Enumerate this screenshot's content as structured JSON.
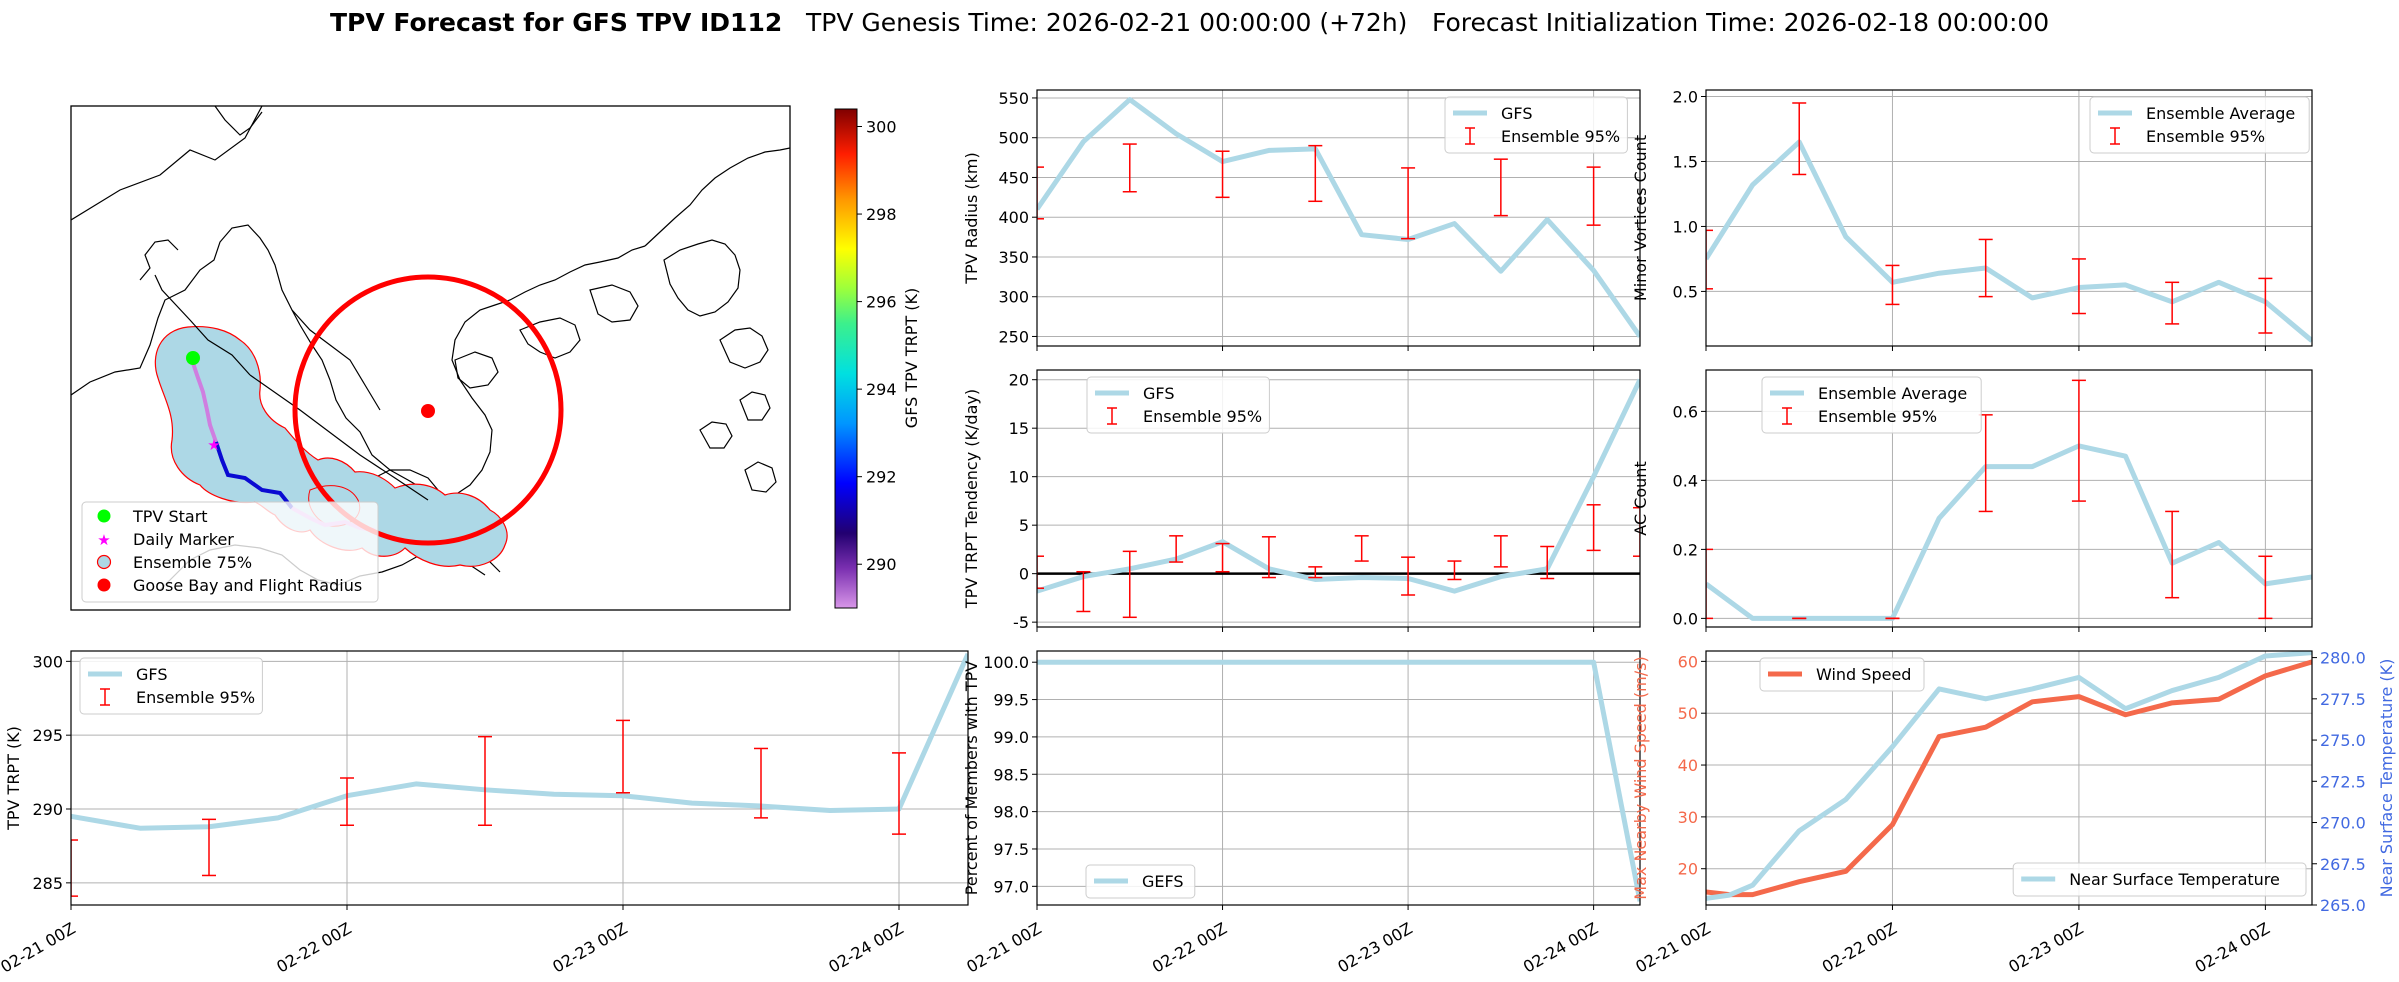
{
  "figure": {
    "title_bold": "TPV Forecast for GFS TPV ID112",
    "title_genesis": "TPV Genesis Time: 2026-02-21 00:00:00 (+72h)",
    "title_init": "Forecast Initialization Time: 2026-02-18 00:00:00"
  },
  "map_panel": {
    "legend": [
      "TPV Start",
      "Daily Marker",
      "Ensemble 75%",
      "Goose Bay and Flight Radius"
    ],
    "colorbar_label": "GFS TPV TRPT (K)",
    "colorbar_ticks": [
      "290",
      "292",
      "294",
      "296",
      "298",
      "300"
    ],
    "colorbar_range": [
      289.0,
      300.4
    ],
    "colors": {
      "start": "#00ff00",
      "daily": "#ff00ff",
      "ensemble_fill": "#add8e6",
      "ensemble_edge": "#ff0000",
      "goose_bay": "#ff0000"
    }
  },
  "chart_data": [
    {
      "id": "radius",
      "type": "line",
      "ylabel": "TPV Radius (km)",
      "ylim": [
        238,
        560
      ],
      "yticks": [
        250,
        300,
        350,
        400,
        450,
        500,
        550
      ],
      "x": [
        0,
        6,
        12,
        18,
        24,
        30,
        36,
        42,
        48,
        54,
        60,
        66,
        72,
        78
      ],
      "series": [
        {
          "name": "GFS",
          "values": [
            410,
            495,
            548,
            505,
            470,
            484,
            486,
            378,
            372,
            392,
            332,
            397,
            333,
            250
          ]
        }
      ],
      "errorbars": {
        "name": "Ensemble 95%",
        "x": [
          0,
          12,
          24,
          36,
          48,
          60,
          72
        ],
        "low": [
          398,
          432,
          425,
          420,
          373,
          402,
          390
        ],
        "high": [
          463,
          492,
          483,
          490,
          462,
          473,
          463
        ]
      },
      "legend": "upper right",
      "grid": true
    },
    {
      "id": "minor",
      "type": "line",
      "ylabel": "Minor Vortices Count",
      "ylim": [
        0.08,
        2.05
      ],
      "yticks": [
        0.5,
        1.0,
        1.5,
        2.0
      ],
      "x": [
        0,
        6,
        12,
        18,
        24,
        30,
        36,
        42,
        48,
        54,
        60,
        66,
        72,
        78
      ],
      "series": [
        {
          "name": "Ensemble Average",
          "values": [
            0.75,
            1.32,
            1.65,
            0.92,
            0.57,
            0.64,
            0.68,
            0.45,
            0.53,
            0.55,
            0.42,
            0.57,
            0.42,
            0.12
          ]
        }
      ],
      "errorbars": {
        "name": "Ensemble 95%",
        "x": [
          0,
          12,
          24,
          36,
          48,
          60,
          72
        ],
        "low": [
          0.52,
          1.4,
          0.4,
          0.46,
          0.33,
          0.25,
          0.18
        ],
        "high": [
          0.97,
          1.95,
          0.7,
          0.9,
          0.75,
          0.57,
          0.6
        ]
      },
      "legend": "upper right",
      "grid": true
    },
    {
      "id": "tendency",
      "type": "line",
      "ylabel": "TPV TRPT Tendency (K/day)",
      "ylim": [
        -5.5,
        21
      ],
      "yticks": [
        -5,
        0,
        5,
        10,
        15,
        20
      ],
      "x": [
        0,
        6,
        12,
        18,
        24,
        30,
        36,
        42,
        48,
        54,
        60,
        66,
        72,
        78
      ],
      "series": [
        {
          "name": "GFS",
          "values": [
            -1.8,
            -0.3,
            0.5,
            1.5,
            3.3,
            0.5,
            -0.6,
            -0.4,
            -0.5,
            -1.8,
            -0.3,
            0.5,
            10,
            20
          ]
        }
      ],
      "errorbars": {
        "name": "Ensemble 95%",
        "x": [
          0,
          6,
          12,
          18,
          24,
          30,
          36,
          42,
          48,
          54,
          60,
          66,
          72,
          78
        ],
        "low": [
          -1.5,
          -3.9,
          -4.5,
          1.2,
          0.2,
          -0.4,
          -0.4,
          1.3,
          -2.2,
          -0.6,
          0.7,
          -0.5,
          2.4,
          1.8
        ],
        "high": [
          1.8,
          0.2,
          2.3,
          3.9,
          3.1,
          3.8,
          0.7,
          3.9,
          1.7,
          1.3,
          3.9,
          2.8,
          7.1,
          6.8
        ]
      },
      "zero_line": true,
      "legend": "upper left",
      "grid": true
    },
    {
      "id": "ac",
      "type": "line",
      "ylabel": "AC Count",
      "ylim": [
        -0.025,
        0.72
      ],
      "yticks": [
        0.0,
        0.2,
        0.4,
        0.6
      ],
      "x": [
        0,
        6,
        12,
        18,
        24,
        30,
        36,
        42,
        48,
        54,
        60,
        66,
        72,
        78
      ],
      "series": [
        {
          "name": "Ensemble Average",
          "values": [
            0.1,
            0,
            0,
            0,
            0,
            0.29,
            0.44,
            0.44,
            0.5,
            0.47,
            0.16,
            0.22,
            0.1,
            0.12
          ]
        }
      ],
      "errorbars": {
        "name": "Ensemble 95%",
        "x": [
          0,
          12,
          24,
          36,
          48,
          60,
          72
        ],
        "low": [
          0,
          0,
          0,
          0.31,
          0.34,
          0.06,
          0
        ],
        "high": [
          0.2,
          0,
          0,
          0.59,
          0.69,
          0.31,
          0.18
        ]
      },
      "legend": "upper left",
      "grid": true
    },
    {
      "id": "trpt",
      "type": "line",
      "ylabel": "TPV TRPT (K)",
      "ylim": [
        283.5,
        300.7
      ],
      "yticks": [
        285,
        290,
        295,
        300
      ],
      "x": [
        0,
        6,
        12,
        18,
        24,
        30,
        36,
        42,
        48,
        54,
        60,
        66,
        72,
        78
      ],
      "series": [
        {
          "name": "GFS",
          "values": [
            289.5,
            288.7,
            288.8,
            289.4,
            290.9,
            291.7,
            291.3,
            291.0,
            290.9,
            290.4,
            290.2,
            289.9,
            290.0,
            300.5
          ]
        }
      ],
      "errorbars": {
        "name": "Ensemble 95%",
        "x": [
          0,
          12,
          24,
          36,
          48,
          60,
          72
        ],
        "low": [
          284.1,
          285.5,
          288.9,
          288.9,
          291.1,
          289.4,
          288.3
        ],
        "high": [
          287.9,
          289.3,
          292.1,
          294.9,
          296.0,
          294.1,
          293.8
        ]
      },
      "legend": "upper left",
      "grid": true
    },
    {
      "id": "members",
      "type": "line",
      "ylabel": "Percent of Members with TPV",
      "ylim": [
        96.75,
        100.15
      ],
      "yticks": [
        97.0,
        97.5,
        98.0,
        98.5,
        99.0,
        99.5,
        100.0
      ],
      "x": [
        0,
        72,
        78
      ],
      "series": [
        {
          "name": "GEFS",
          "values": [
            100,
            100,
            96.8
          ]
        }
      ],
      "legend": "lower left",
      "grid": true
    },
    {
      "id": "wind",
      "type": "line",
      "ylabel": "Max Nearby Wind Speed (m/s)",
      "ylabel_right": "Near Surface Temperature (K)",
      "ylim": [
        13,
        62
      ],
      "yticks": [
        20,
        30,
        40,
        50,
        60
      ],
      "ylim_right": [
        265,
        280.4
      ],
      "yticks_right": [
        "265.0",
        "267.5",
        "270.0",
        "272.5",
        "275.0",
        "277.5",
        "280.0"
      ],
      "x": [
        0,
        3,
        6,
        12,
        18,
        24,
        30,
        36,
        42,
        48,
        54,
        60,
        66,
        72,
        78
      ],
      "series": [
        {
          "name": "Wind Speed",
          "values": [
            15.5,
            15,
            15,
            17.5,
            19.5,
            28.5,
            45.5,
            47.3,
            52.2,
            53.2,
            49.7,
            52,
            52.7,
            57.2,
            59.9
          ],
          "axis": "left",
          "color": "#f4694b"
        },
        {
          "name": "Near Surface Temperature",
          "values": [
            265.4,
            265.6,
            266.2,
            269.5,
            271.4,
            274.6,
            278.1,
            277.5,
            278.1,
            278.8,
            276.9,
            278.0,
            278.8,
            280.1,
            280.3
          ],
          "axis": "right",
          "color": "#add8e6"
        }
      ],
      "legend_left": "upper left",
      "legend_right": "lower right",
      "grid": true
    }
  ],
  "xticks": [
    "02-21 00Z",
    "02-22 00Z",
    "02-23 00Z",
    "02-24 00Z"
  ],
  "xtick_hours": [
    0,
    24,
    48,
    72
  ],
  "x_range": [
    0,
    78
  ]
}
